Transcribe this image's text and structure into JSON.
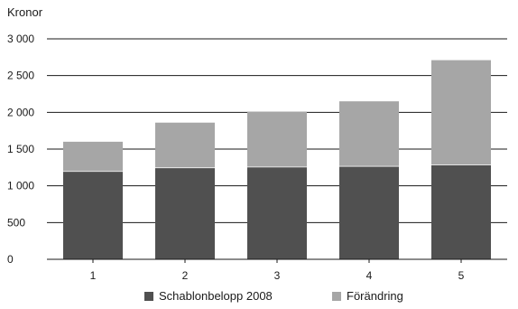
{
  "chart_data": {
    "type": "bar",
    "stacked": true,
    "ylabel": "Kronor",
    "categories": [
      "1",
      "2",
      "3",
      "4",
      "5"
    ],
    "y_ticks": [
      "0",
      "500",
      "1 000",
      "1 500",
      "2 000",
      "2 500",
      "3 000"
    ],
    "ylim": [
      0,
      3000
    ],
    "grid": true,
    "legend_position": "bottom",
    "series": [
      {
        "name": "Schablonbelopp 2008",
        "color": "#505050",
        "values": [
          1200,
          1250,
          1260,
          1270,
          1290
        ]
      },
      {
        "name": "Förändring",
        "color": "#a6a6a6",
        "values": [
          400,
          610,
          750,
          880,
          1420
        ]
      }
    ]
  }
}
